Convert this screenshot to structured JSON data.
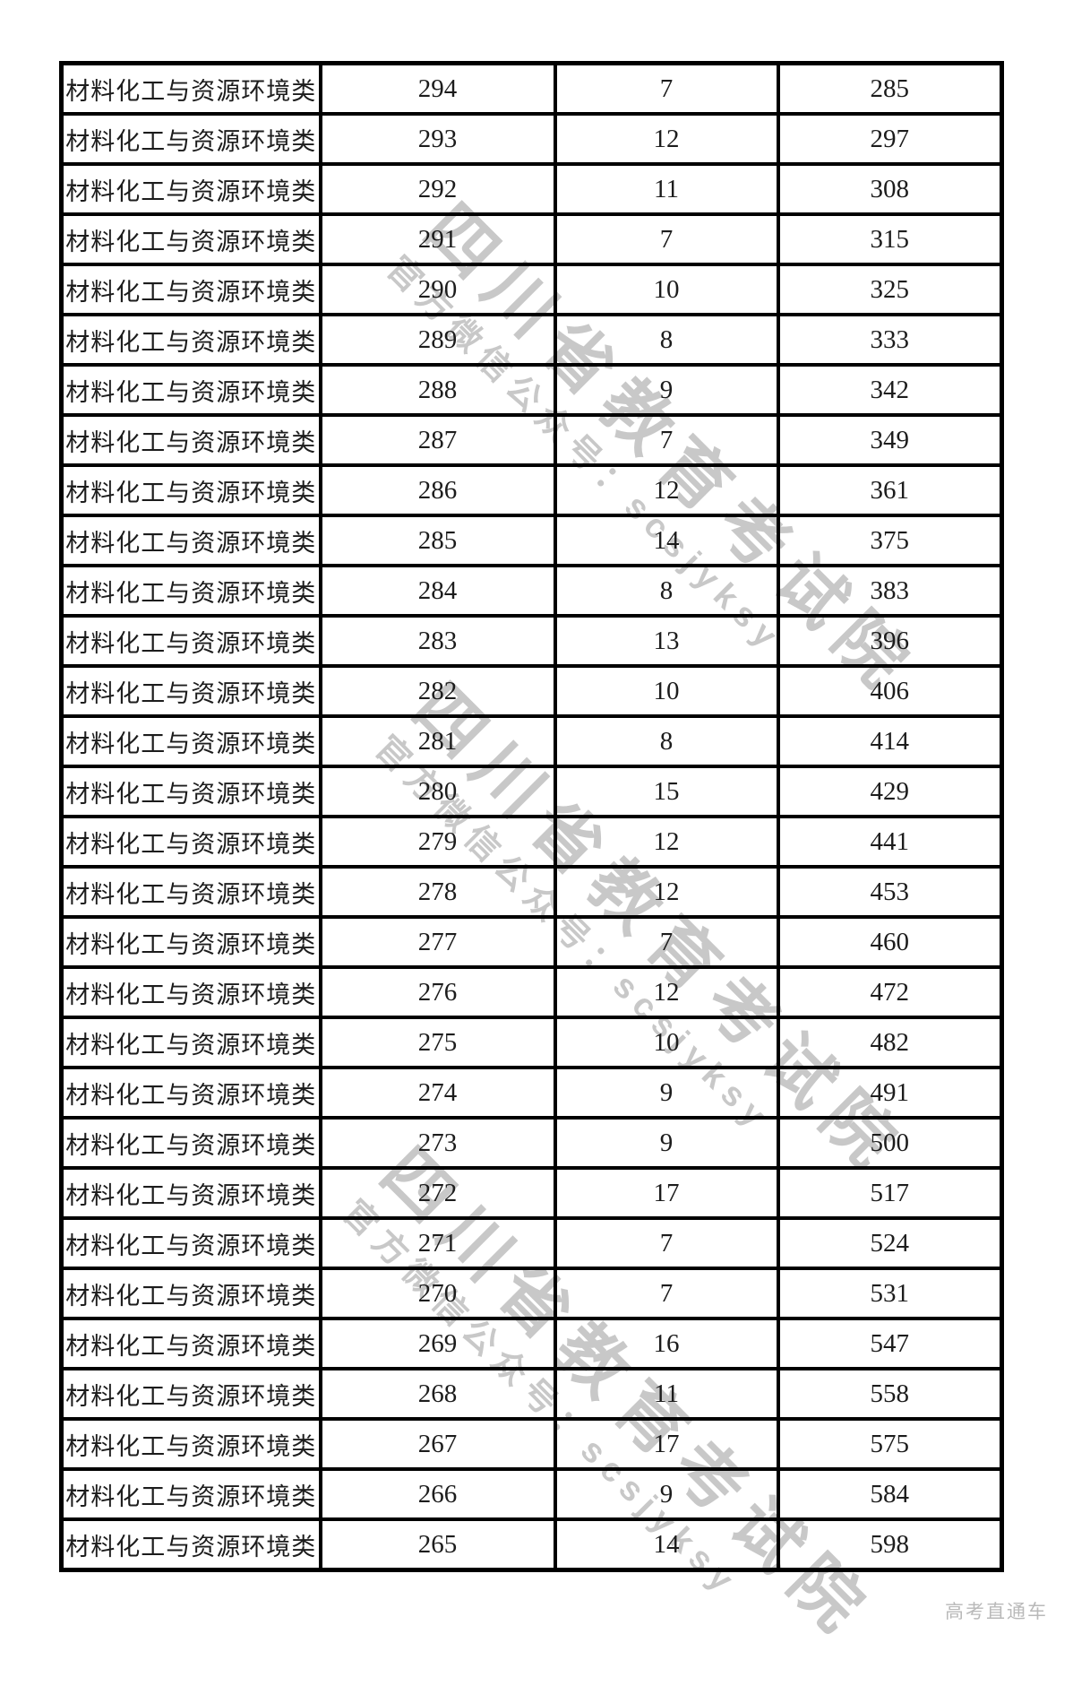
{
  "watermark": {
    "line1": "四川省教育考试院",
    "line2": "官方微信公众号：scsjyksy",
    "color": "#c8c8c8"
  },
  "footer": {
    "brand": "高考直通车"
  },
  "table": {
    "border_color": "#000000",
    "rows": [
      {
        "category": "材料化工与资源环境类",
        "score": "294",
        "count": "7",
        "cumulative": "285"
      },
      {
        "category": "材料化工与资源环境类",
        "score": "293",
        "count": "12",
        "cumulative": "297"
      },
      {
        "category": "材料化工与资源环境类",
        "score": "292",
        "count": "11",
        "cumulative": "308"
      },
      {
        "category": "材料化工与资源环境类",
        "score": "291",
        "count": "7",
        "cumulative": "315"
      },
      {
        "category": "材料化工与资源环境类",
        "score": "290",
        "count": "10",
        "cumulative": "325"
      },
      {
        "category": "材料化工与资源环境类",
        "score": "289",
        "count": "8",
        "cumulative": "333"
      },
      {
        "category": "材料化工与资源环境类",
        "score": "288",
        "count": "9",
        "cumulative": "342"
      },
      {
        "category": "材料化工与资源环境类",
        "score": "287",
        "count": "7",
        "cumulative": "349"
      },
      {
        "category": "材料化工与资源环境类",
        "score": "286",
        "count": "12",
        "cumulative": "361"
      },
      {
        "category": "材料化工与资源环境类",
        "score": "285",
        "count": "14",
        "cumulative": "375"
      },
      {
        "category": "材料化工与资源环境类",
        "score": "284",
        "count": "8",
        "cumulative": "383"
      },
      {
        "category": "材料化工与资源环境类",
        "score": "283",
        "count": "13",
        "cumulative": "396"
      },
      {
        "category": "材料化工与资源环境类",
        "score": "282",
        "count": "10",
        "cumulative": "406"
      },
      {
        "category": "材料化工与资源环境类",
        "score": "281",
        "count": "8",
        "cumulative": "414"
      },
      {
        "category": "材料化工与资源环境类",
        "score": "280",
        "count": "15",
        "cumulative": "429"
      },
      {
        "category": "材料化工与资源环境类",
        "score": "279",
        "count": "12",
        "cumulative": "441"
      },
      {
        "category": "材料化工与资源环境类",
        "score": "278",
        "count": "12",
        "cumulative": "453"
      },
      {
        "category": "材料化工与资源环境类",
        "score": "277",
        "count": "7",
        "cumulative": "460"
      },
      {
        "category": "材料化工与资源环境类",
        "score": "276",
        "count": "12",
        "cumulative": "472"
      },
      {
        "category": "材料化工与资源环境类",
        "score": "275",
        "count": "10",
        "cumulative": "482"
      },
      {
        "category": "材料化工与资源环境类",
        "score": "274",
        "count": "9",
        "cumulative": "491"
      },
      {
        "category": "材料化工与资源环境类",
        "score": "273",
        "count": "9",
        "cumulative": "500"
      },
      {
        "category": "材料化工与资源环境类",
        "score": "272",
        "count": "17",
        "cumulative": "517"
      },
      {
        "category": "材料化工与资源环境类",
        "score": "271",
        "count": "7",
        "cumulative": "524"
      },
      {
        "category": "材料化工与资源环境类",
        "score": "270",
        "count": "7",
        "cumulative": "531"
      },
      {
        "category": "材料化工与资源环境类",
        "score": "269",
        "count": "16",
        "cumulative": "547"
      },
      {
        "category": "材料化工与资源环境类",
        "score": "268",
        "count": "11",
        "cumulative": "558"
      },
      {
        "category": "材料化工与资源环境类",
        "score": "267",
        "count": "17",
        "cumulative": "575"
      },
      {
        "category": "材料化工与资源环境类",
        "score": "266",
        "count": "9",
        "cumulative": "584"
      },
      {
        "category": "材料化工与资源环境类",
        "score": "265",
        "count": "14",
        "cumulative": "598"
      }
    ]
  }
}
